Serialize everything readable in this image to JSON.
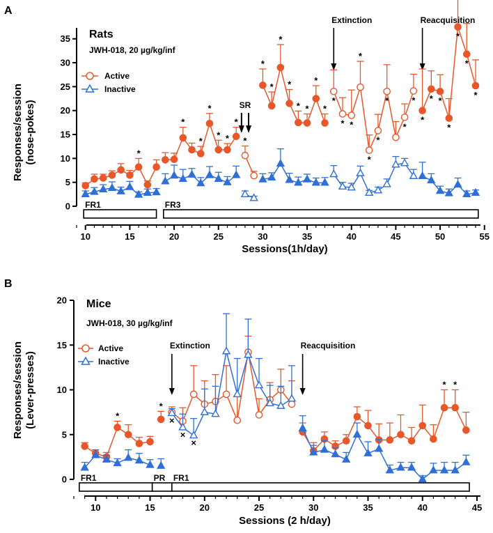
{
  "chart_data": [
    {
      "type": "line",
      "panel": "A",
      "title": "Rats",
      "subtitle": "JWH-018, 20 µg/kg/inf",
      "ylabel": "Responses/session",
      "ylabel2": "(nose-pokes)",
      "xlabel": "Sessions(1h/day)",
      "xlim": [
        9,
        55
      ],
      "ylim": [
        0,
        38
      ],
      "xticks": [
        10,
        15,
        20,
        25,
        30,
        35,
        40,
        45,
        50,
        55
      ],
      "yticks": [
        0,
        5,
        10,
        15,
        20,
        25,
        30,
        35
      ],
      "colors": {
        "active": "#e8572a",
        "inactive": "#2f6fd6"
      },
      "legend": [
        {
          "name": "Active",
          "marker": "circle"
        },
        {
          "name": "Inactive",
          "marker": "triangle"
        }
      ],
      "series": [
        {
          "name": "Active",
          "role": "active",
          "segments": [
            {
              "x": [
                10,
                11,
                12,
                13,
                14,
                15,
                16,
                17,
                18
              ],
              "y": [
                4.3,
                5.7,
                5.9,
                6.5,
                7.6,
                6.5,
                8.2,
                4.5,
                8.2
              ],
              "err": [
                0.6,
                1.0,
                0.8,
                0.9,
                1.3,
                1.0,
                1.8,
                0.8,
                1.5
              ]
            },
            {
              "x": [
                19,
                20,
                21,
                22,
                23,
                24,
                25,
                26,
                27
              ],
              "y": [
                9.7,
                9.8,
                14.3,
                11.8,
                11.0,
                17.3,
                11.8,
                11.8,
                14.6
              ],
              "err": [
                1.5,
                1.3,
                2.2,
                1.4,
                1.5,
                2.1,
                2.0,
                1.3,
                1.9
              ]
            },
            {
              "x": [
                28,
                29
              ],
              "y": [
                10.6,
                6.4
              ],
              "err": [
                2.0,
                0.9
              ],
              "open": true
            },
            {
              "x": [
                30,
                31,
                32,
                33,
                34,
                35,
                36,
                37
              ],
              "y": [
                25.3,
                21.0,
                29.0,
                21.5,
                17.5,
                17.4,
                22.5,
                17.4
              ],
              "err": [
                3.4,
                2.9,
                4.8,
                2.9,
                2.4,
                1.9,
                2.7,
                1.9
              ]
            },
            {
              "x": [
                38,
                39,
                40,
                41,
                42,
                43,
                44,
                45,
                46,
                47
              ],
              "y": [
                24.0,
                19.3,
                19.0,
                24.9,
                11.7,
                15.8,
                24.0,
                14.4,
                18.6,
                24.1
              ],
              "err": [
                4.5,
                3.4,
                5.3,
                5.4,
                3.2,
                3.4,
                5.6,
                3.3,
                2.8,
                3.5
              ],
              "open": true
            },
            {
              "x": [
                48,
                49,
                50,
                51,
                52,
                53,
                54
              ],
              "y": [
                20.0,
                24.5,
                24.0,
                18.4,
                37.5,
                31.8,
                25.2
              ],
              "err": [
                8.7,
                3.8,
                3.5,
                4.1,
                5.9,
                6.4,
                5.4
              ]
            }
          ]
        },
        {
          "name": "Inactive",
          "role": "inactive",
          "segments": [
            {
              "x": [
                10,
                11,
                12,
                13,
                14,
                15,
                16,
                17,
                18
              ],
              "y": [
                2.5,
                3.0,
                3.5,
                3.8,
                3.1,
                4.0,
                2.4,
                2.8,
                2.9
              ],
              "err": [
                0.7,
                0.9,
                1.0,
                1.3,
                0.9,
                1.2,
                0.6,
                0.8,
                0.8
              ]
            },
            {
              "x": [
                19,
                20,
                21,
                22,
                23,
                24,
                25,
                26,
                27
              ],
              "y": [
                5.2,
                6.4,
                5.7,
                6.6,
                4.8,
                6.5,
                5.7,
                5.0,
                6.5
              ],
              "err": [
                1.6,
                2.2,
                2.0,
                1.3,
                1.2,
                1.8,
                1.4,
                1.2,
                1.9
              ]
            },
            {
              "x": [
                28,
                29
              ],
              "y": [
                2.5,
                1.7
              ],
              "err": [
                0.7,
                0.4
              ],
              "open": true
            },
            {
              "x": [
                30,
                31,
                32,
                33,
                34,
                35,
                36,
                37
              ],
              "y": [
                5.6,
                6.0,
                8.9,
                5.5,
                4.9,
                5.6,
                4.9,
                4.9
              ],
              "err": [
                1.2,
                1.0,
                3.1,
                1.4,
                1.2,
                1.1,
                1.0,
                1.1
              ]
            },
            {
              "x": [
                38,
                39,
                40,
                41,
                42,
                43,
                44,
                45,
                46,
                47
              ],
              "y": [
                6.7,
                4.1,
                3.9,
                6.9,
                2.8,
                3.3,
                4.6,
                8.7,
                9.0,
                6.3
              ],
              "err": [
                1.8,
                0.9,
                0.9,
                1.5,
                0.5,
                0.7,
                1.1,
                1.7,
                1.0,
                1.4
              ],
              "open": true
            },
            {
              "x": [
                48,
                49,
                50,
                51,
                52,
                53,
                54
              ],
              "y": [
                6.3,
                5.4,
                3.2,
                2.7,
                4.5,
                2.5,
                2.8
              ],
              "err": [
                2.9,
                1.4,
                1.0,
                0.9,
                1.4,
                0.7,
                0.6
              ]
            }
          ]
        }
      ],
      "stars_above": [
        16,
        21,
        23,
        24,
        25,
        26,
        27,
        28,
        30,
        31,
        32,
        33,
        34,
        35,
        36,
        37,
        41
      ],
      "stars_below": [
        38,
        39,
        40,
        42,
        43,
        44,
        46,
        47,
        48,
        49,
        50,
        51,
        52,
        53,
        54
      ],
      "annotations": [
        {
          "label": "SR",
          "x": 28.5
        },
        {
          "label": "Extinction",
          "x": 38
        },
        {
          "label": "Reacquisition",
          "x": 48
        }
      ],
      "schedule_bars": [
        {
          "label": "FR1",
          "x0": 9.8,
          "x1": 18
        },
        {
          "label": "FR3",
          "x0": 18.8,
          "x1": 54.3
        }
      ]
    },
    {
      "type": "line",
      "panel": "B",
      "title": "Mice",
      "subtitle": "JWH-018, 30 µg/kg/inf",
      "ylabel": "Responses/session",
      "ylabel2": "(Lever-presses)",
      "xlabel": "Sessions (2 h/day)",
      "xlim": [
        8,
        45
      ],
      "ylim": [
        0,
        20
      ],
      "xticks": [
        10,
        15,
        20,
        25,
        30,
        35,
        40,
        45
      ],
      "yticks": [
        0,
        5,
        10,
        15,
        20
      ],
      "colors": {
        "active": "#e8572a",
        "inactive": "#2f6fd6"
      },
      "legend": [
        {
          "name": "Active",
          "marker": "circle"
        },
        {
          "name": "Inactive",
          "marker": "triangle"
        }
      ],
      "series": [
        {
          "name": "Active",
          "role": "active",
          "segments": [
            {
              "x": [
                9,
                10,
                11,
                12,
                13,
                14,
                15
              ],
              "y": [
                3.7,
                2.9,
                2.5,
                5.8,
                5.0,
                4.0,
                4.2
              ],
              "err": [
                0.4,
                0.4,
                0.5,
                0.7,
                1.1,
                0.7,
                0.6
              ]
            },
            {
              "x": [
                16
              ],
              "y": [
                6.7
              ],
              "err": [
                0.9
              ]
            },
            {
              "x": [
                17,
                18,
                19,
                20,
                21,
                22,
                23,
                24,
                25,
                26,
                27,
                28
              ],
              "y": [
                7.5,
                6.5,
                9.5,
                8.4,
                8.7,
                9.5,
                6.6,
                14.2,
                7.2,
                8.9,
                10.0,
                8.4
              ],
              "err": [
                0.6,
                1.5,
                3.2,
                2.6,
                3.0,
                3.2,
                2.7,
                1.8,
                1.8,
                1.9,
                2.3,
                2.6
              ],
              "open": true
            },
            {
              "x": [
                29,
                30,
                31,
                32,
                33,
                34,
                35,
                36,
                37,
                38,
                39,
                40,
                41,
                42,
                43,
                44
              ],
              "y": [
                5.3,
                3.2,
                4.5,
                3.7,
                4.3,
                7.0,
                6.0,
                4.4,
                4.4,
                5.0,
                4.3,
                6.0,
                4.5,
                8.0,
                8.0,
                5.5
              ],
              "err": [
                1.0,
                0.9,
                0.8,
                0.6,
                0.7,
                1.1,
                1.7,
                1.8,
                1.9,
                2.2,
                1.5,
                2.3,
                1.6,
                2.0,
                2.0,
                2.0
              ]
            }
          ]
        },
        {
          "name": "Inactive",
          "role": "inactive",
          "segments": [
            {
              "x": [
                9,
                10,
                11,
                12,
                13,
                14,
                15
              ],
              "y": [
                1.3,
                2.7,
                2.2,
                1.8,
                2.4,
                2.1,
                1.6
              ],
              "err": [
                0.6,
                0.6,
                0.5,
                0.5,
                0.9,
                0.8,
                0.6
              ]
            },
            {
              "x": [
                16
              ],
              "y": [
                1.5
              ],
              "err": [
                0.8
              ]
            },
            {
              "x": [
                17,
                18,
                19,
                20,
                21,
                22,
                23,
                24,
                25,
                26,
                27,
                28
              ],
              "y": [
                7.4,
                5.8,
                4.9,
                7.5,
                7.3,
                14.3,
                9.5,
                13.9,
                10.5,
                8.5,
                8.2,
                9.0
              ],
              "err": [
                0.5,
                1.5,
                1.9,
                2.6,
                3.1,
                4.2,
                4.0,
                4.0,
                3.0,
                2.0,
                2.2,
                3.7
              ],
              "open": true
            },
            {
              "x": [
                29,
                30,
                31,
                32,
                33,
                34,
                35,
                36,
                37,
                38,
                39,
                40,
                41,
                42,
                43,
                44
              ],
              "y": [
                5.7,
                3.0,
                3.3,
                2.8,
                2.2,
                5.0,
                2.9,
                3.4,
                1.0,
                1.3,
                1.3,
                0.0,
                1.0,
                1.0,
                1.0,
                1.9
              ],
              "err": [
                1.4,
                0.8,
                1.0,
                0.7,
                0.8,
                1.3,
                1.3,
                1.1,
                0.6,
                0.6,
                0.6,
                0.4,
                0.8,
                0.9,
                0.9,
                0.8
              ]
            }
          ]
        }
      ],
      "stars_above": [
        12,
        16,
        42,
        43
      ],
      "x_marks": [
        17,
        18,
        19
      ],
      "annotations": [
        {
          "label": "Extinction",
          "x": 17
        },
        {
          "label": "Reacquisition",
          "x": 29
        }
      ],
      "schedule_bars": [
        {
          "label": "FR1",
          "x0": 8.5,
          "x1": 15.2
        },
        {
          "label": "PR",
          "x0": 15.2,
          "x1": 17
        },
        {
          "label": "FR1",
          "x0": 17,
          "x1": 44.3
        }
      ]
    }
  ]
}
